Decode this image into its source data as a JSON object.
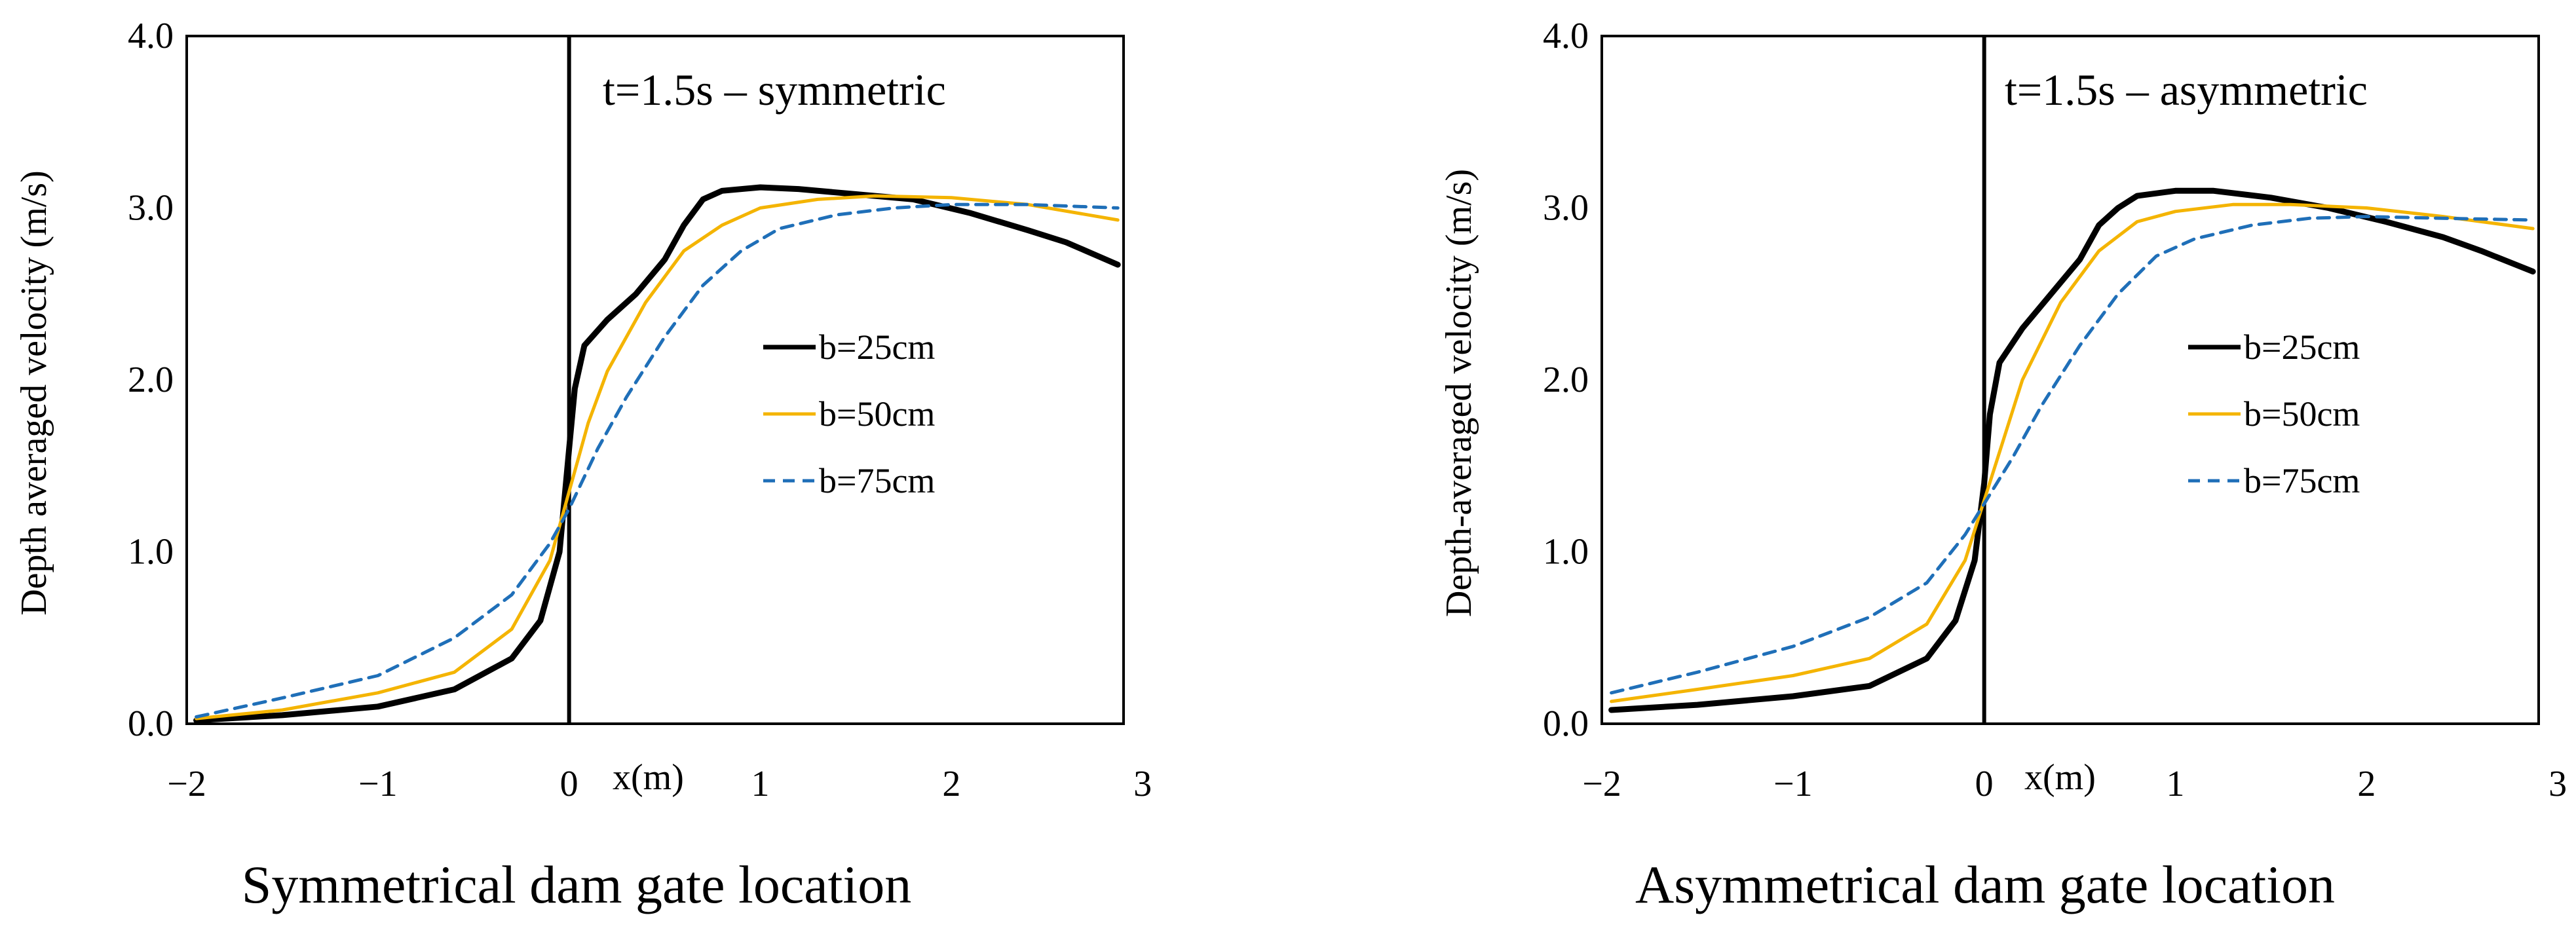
{
  "colors": {
    "b25": "#000000",
    "b50": "#f4b400",
    "b75": "#1f6fb8"
  },
  "chart_data": [
    {
      "type": "line",
      "title": "t=1.5s – symmetric",
      "caption": "Symmetrical dam gate location",
      "xlabel": "x(m)",
      "ylabel": "Depth averaged velocity (m/s)",
      "xlim": [
        -2,
        2.9
      ],
      "ylim": [
        0,
        4
      ],
      "xticks": [
        "−2",
        "−1",
        "0",
        "1",
        "2",
        "3"
      ],
      "yticks": [
        "0.0",
        "1.0",
        "2.0",
        "3.0",
        "4.0"
      ],
      "gate_line_x": 0,
      "legend": [
        "b=25cm",
        "b=50cm",
        "b=75cm"
      ],
      "series": [
        {
          "name": "b=25cm",
          "style": "solid-bold",
          "x": [
            -1.95,
            -1.5,
            -1.0,
            -0.6,
            -0.3,
            -0.15,
            -0.05,
            0.0,
            0.03,
            0.08,
            0.2,
            0.35,
            0.5,
            0.6,
            0.7,
            0.8,
            1.0,
            1.2,
            1.5,
            1.8,
            2.1,
            2.4,
            2.6,
            2.87
          ],
          "y": [
            0.02,
            0.05,
            0.1,
            0.2,
            0.38,
            0.6,
            1.0,
            1.6,
            1.95,
            2.2,
            2.35,
            2.5,
            2.7,
            2.9,
            3.05,
            3.1,
            3.12,
            3.11,
            3.08,
            3.05,
            2.97,
            2.87,
            2.8,
            2.67
          ]
        },
        {
          "name": "b=50cm",
          "style": "solid",
          "x": [
            -1.95,
            -1.5,
            -1.0,
            -0.6,
            -0.3,
            -0.1,
            0.0,
            0.1,
            0.2,
            0.4,
            0.6,
            0.8,
            1.0,
            1.3,
            1.6,
            2.0,
            2.4,
            2.87
          ],
          "y": [
            0.03,
            0.08,
            0.18,
            0.3,
            0.55,
            0.95,
            1.35,
            1.75,
            2.05,
            2.45,
            2.75,
            2.9,
            3.0,
            3.05,
            3.07,
            3.06,
            3.02,
            2.93
          ]
        },
        {
          "name": "b=75cm",
          "style": "dashed",
          "x": [
            -1.95,
            -1.5,
            -1.0,
            -0.6,
            -0.3,
            -0.1,
            0.0,
            0.15,
            0.3,
            0.5,
            0.7,
            0.9,
            1.1,
            1.4,
            1.7,
            2.0,
            2.4,
            2.87
          ],
          "y": [
            0.04,
            0.15,
            0.28,
            0.5,
            0.75,
            1.05,
            1.25,
            1.6,
            1.9,
            2.25,
            2.55,
            2.75,
            2.88,
            2.96,
            3.0,
            3.02,
            3.02,
            3.0
          ]
        }
      ]
    },
    {
      "type": "line",
      "title": "t=1.5s – asymmetric",
      "caption": "Asymmetrical dam gate location",
      "xlabel": "x(m)",
      "ylabel": "Depth-averaged velocity (m/s)",
      "xlim": [
        -2,
        2.9
      ],
      "ylim": [
        0,
        4
      ],
      "xticks": [
        "−2",
        "−1",
        "0",
        "1",
        "2",
        "3"
      ],
      "yticks": [
        "0.0",
        "1.0",
        "2.0",
        "3.0",
        "4.0"
      ],
      "gate_line_x": 0,
      "legend": [
        "b=25cm",
        "b=50cm",
        "b=75cm"
      ],
      "series": [
        {
          "name": "b=25cm",
          "style": "solid-bold",
          "x": [
            -1.95,
            -1.5,
            -1.0,
            -0.6,
            -0.3,
            -0.15,
            -0.05,
            0.0,
            0.03,
            0.08,
            0.2,
            0.35,
            0.5,
            0.6,
            0.7,
            0.8,
            1.0,
            1.2,
            1.5,
            1.8,
            2.1,
            2.4,
            2.6,
            2.87
          ],
          "y": [
            0.08,
            0.11,
            0.16,
            0.22,
            0.38,
            0.6,
            0.95,
            1.4,
            1.8,
            2.1,
            2.3,
            2.5,
            2.7,
            2.9,
            3.0,
            3.07,
            3.1,
            3.1,
            3.06,
            3.0,
            2.92,
            2.83,
            2.75,
            2.63
          ]
        },
        {
          "name": "b=50cm",
          "style": "solid",
          "x": [
            -1.95,
            -1.5,
            -1.0,
            -0.6,
            -0.3,
            -0.1,
            0.0,
            0.1,
            0.2,
            0.4,
            0.6,
            0.8,
            1.0,
            1.3,
            1.6,
            2.0,
            2.4,
            2.87
          ],
          "y": [
            0.13,
            0.2,
            0.28,
            0.38,
            0.58,
            0.95,
            1.3,
            1.65,
            2.0,
            2.45,
            2.75,
            2.92,
            2.98,
            3.02,
            3.02,
            3.0,
            2.95,
            2.88
          ]
        },
        {
          "name": "b=75cm",
          "style": "dashed",
          "x": [
            -1.95,
            -1.5,
            -1.0,
            -0.6,
            -0.3,
            -0.1,
            0.0,
            0.15,
            0.3,
            0.5,
            0.7,
            0.9,
            1.1,
            1.4,
            1.7,
            2.0,
            2.4,
            2.87
          ],
          "y": [
            0.18,
            0.3,
            0.45,
            0.62,
            0.82,
            1.1,
            1.28,
            1.55,
            1.85,
            2.2,
            2.5,
            2.72,
            2.82,
            2.9,
            2.94,
            2.95,
            2.94,
            2.93
          ]
        }
      ]
    }
  ]
}
